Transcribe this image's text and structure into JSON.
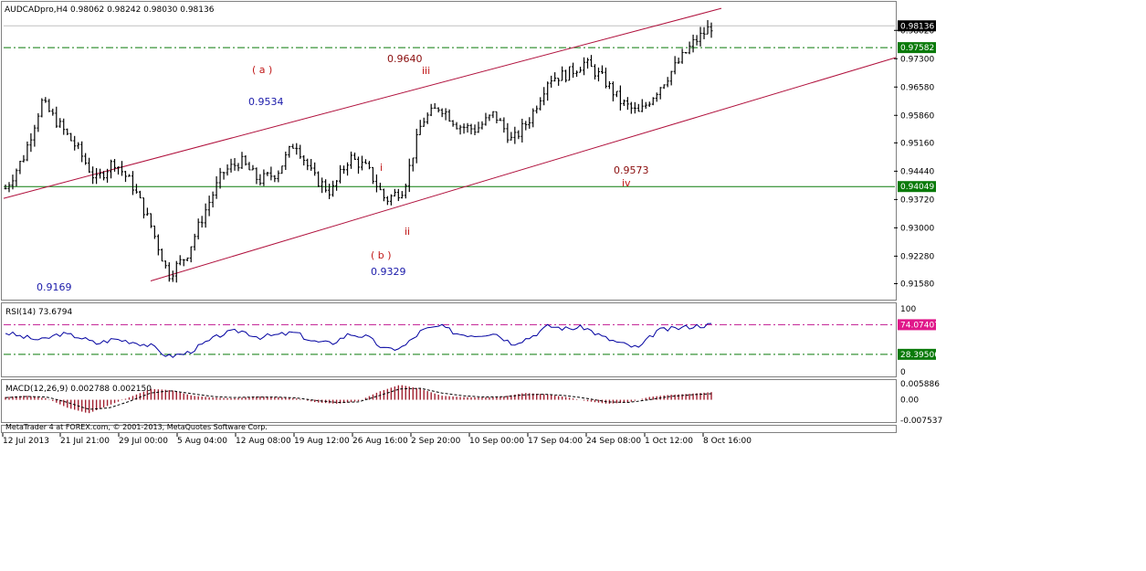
{
  "header": {
    "symbol": "AUDCADpro,H4",
    "ohlc": "0.98062 0.98242 0.98030 0.98136"
  },
  "colors": {
    "bars": "#000000",
    "channel": "#b0103c",
    "hline": "#0a7a0a",
    "rsi_line": "#0000a0",
    "rsi_level": "#c01890",
    "macd_hist": "#a02030",
    "label_blue": "#1a1aaa",
    "label_red": "#c01818",
    "label_dark": "#8a0c0c"
  },
  "footer": {
    "copyright": "MetaTrader 4 at FOREX.com, © 2001-2013, MetaQuotes Software Corp."
  },
  "chart_data": [
    {
      "type": "candlestick",
      "panel": "price",
      "title": "AUDCADpro,H4",
      "ylim": [
        0.9122,
        0.987
      ],
      "y_ticks": [
        "0.98020",
        "0.97300",
        "0.96580",
        "0.95860",
        "0.95160",
        "0.94440",
        "0.93720",
        "0.93000",
        "0.92280",
        "0.91580"
      ],
      "x_ticks": [
        "12 Jul 2013",
        "21 Jul 21:00",
        "29 Jul 00:00",
        "5 Aug 04:00",
        "12 Aug 08:00",
        "19 Aug 12:00",
        "26 Aug 16:00",
        "2 Sep 20:00",
        "10 Sep 00:00",
        "17 Sep 04:00",
        "24 Sep 08:00",
        "1 Oct 12:00",
        "8 Oct 16:00"
      ],
      "series": [
        {
          "approx_closes": [
            0.94,
            0.948,
            0.962,
            0.956,
            0.95,
            0.942,
            0.947,
            0.941,
            0.931,
            0.918,
            0.923,
            0.934,
            0.944,
            0.947,
            0.942,
            0.944,
            0.952,
            0.943,
            0.939,
            0.948,
            0.945,
            0.937,
            0.94,
            0.957,
            0.961,
            0.956,
            0.955,
            0.959,
            0.952,
            0.958,
            0.968,
            0.969,
            0.972,
            0.968,
            0.962,
            0.959,
            0.965,
            0.971,
            0.977,
            0.9813
          ]
        }
      ],
      "last_price": "0.98136",
      "price_labels": [
        {
          "text": "0.98136",
          "style": "black"
        },
        {
          "text": "0.97582",
          "style": "green"
        },
        {
          "text": "0.94049",
          "style": "green"
        }
      ],
      "hlines": [
        0.97582,
        0.94049
      ],
      "annotations": [
        {
          "text": "( a )",
          "color": "red"
        },
        {
          "text": "0.9534",
          "color": "blue"
        },
        {
          "text": "0.9640",
          "color": "dark"
        },
        {
          "text": "iii",
          "color": "red"
        },
        {
          "text": "i",
          "color": "red"
        },
        {
          "text": "ii",
          "color": "red"
        },
        {
          "text": "( b )",
          "color": "red"
        },
        {
          "text": "0.9329",
          "color": "blue"
        },
        {
          "text": "0.9169",
          "color": "blue"
        },
        {
          "text": "0.9573",
          "color": "dark"
        },
        {
          "text": "iv",
          "color": "red"
        }
      ]
    },
    {
      "type": "line",
      "panel": "rsi",
      "title": "RSI(14) 73.6794",
      "ylim": [
        0,
        100
      ],
      "y_ticks": [
        "100",
        "0"
      ],
      "levels": [
        74.07407,
        28.39506
      ],
      "level_labels": [
        "74.07407",
        "28.39506"
      ],
      "series": [
        {
          "values": [
            62,
            55,
            50,
            60,
            56,
            45,
            52,
            48,
            42,
            25,
            30,
            45,
            60,
            65,
            55,
            58,
            62,
            48,
            45,
            60,
            55,
            35,
            40,
            65,
            72,
            60,
            58,
            62,
            45,
            55,
            72,
            68,
            70,
            55,
            45,
            38,
            65,
            68,
            72,
            74
          ]
        }
      ]
    },
    {
      "type": "bar",
      "panel": "macd",
      "title": "MACD(12,26,9) 0.002788 0.002150",
      "ylim": [
        -0.00753,
        0.00589
      ],
      "y_ticks": [
        "0.005886",
        "0.00",
        "-0.007537"
      ],
      "series": [
        {
          "name": "main",
          "values": [
            0.001,
            0.0015,
            0.0005,
            -0.003,
            -0.005,
            -0.002,
            0.001,
            0.004,
            0.0035,
            0.0015,
            0.0008,
            0.0005,
            0.0012,
            0.001,
            0.0005,
            -0.001,
            -0.0015,
            -0.0005,
            0.003,
            0.0055,
            0.004,
            0.0015,
            0.001,
            0.0008,
            0.0012,
            0.0025,
            0.002,
            0.001,
            -0.0005,
            -0.0015,
            -0.001,
            0.001,
            0.0018,
            0.0022,
            0.0028
          ]
        },
        {
          "name": "signal",
          "values": [
            0.0008,
            0.0012,
            0.001,
            -0.001,
            -0.0035,
            -0.003,
            -0.0005,
            0.0025,
            0.0033,
            0.0022,
            0.0012,
            0.0008,
            0.001,
            0.001,
            0.0007,
            -0.0003,
            -0.001,
            -0.0008,
            0.0015,
            0.004,
            0.0042,
            0.0025,
            0.0015,
            0.001,
            0.0011,
            0.0018,
            0.002,
            0.0015,
            0.0005,
            -0.0008,
            -0.001,
            0.0,
            0.0012,
            0.0018,
            0.0022
          ]
        }
      ]
    }
  ]
}
